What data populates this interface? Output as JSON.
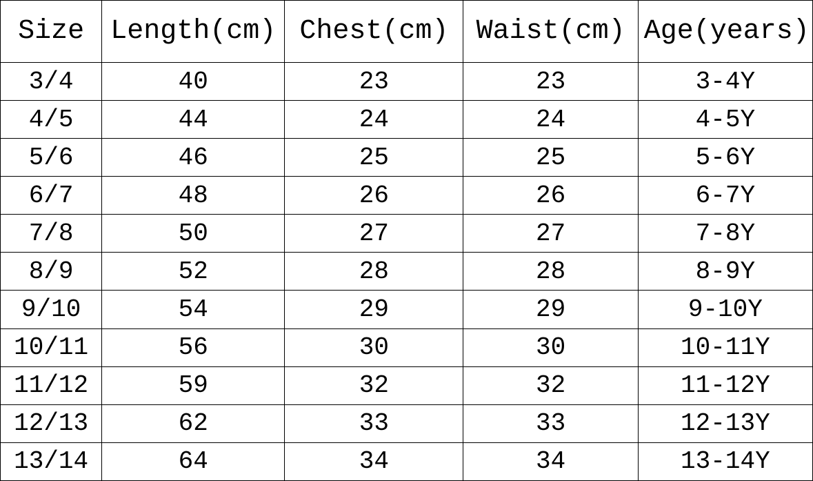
{
  "table": {
    "columns": [
      "Size",
      "Length(cm)",
      "Chest(cm)",
      "Waist(cm)",
      "Age(years)"
    ],
    "rows": [
      [
        "3/4",
        "40",
        "23",
        "23",
        "3-4Y"
      ],
      [
        "4/5",
        "44",
        "24",
        "24",
        "4-5Y"
      ],
      [
        "5/6",
        "46",
        "25",
        "25",
        "5-6Y"
      ],
      [
        "6/7",
        "48",
        "26",
        "26",
        "6-7Y"
      ],
      [
        "7/8",
        "50",
        "27",
        "27",
        "7-8Y"
      ],
      [
        "8/9",
        "52",
        "28",
        "28",
        "8-9Y"
      ],
      [
        "9/10",
        "54",
        "29",
        "29",
        "9-10Y"
      ],
      [
        "10/11",
        "56",
        "30",
        "30",
        "10-11Y"
      ],
      [
        "11/12",
        "59",
        "32",
        "32",
        "11-12Y"
      ],
      [
        "12/13",
        "62",
        "33",
        "33",
        "12-13Y"
      ],
      [
        "13/14",
        "64",
        "34",
        "34",
        "13-14Y"
      ]
    ],
    "header_fontsize": 40,
    "body_fontsize": 36,
    "border_color": "#000000",
    "background_color": "#ffffff",
    "text_color": "#000000",
    "col_widths_percent": [
      12.5,
      22.5,
      22,
      21.5,
      21.5
    ]
  }
}
